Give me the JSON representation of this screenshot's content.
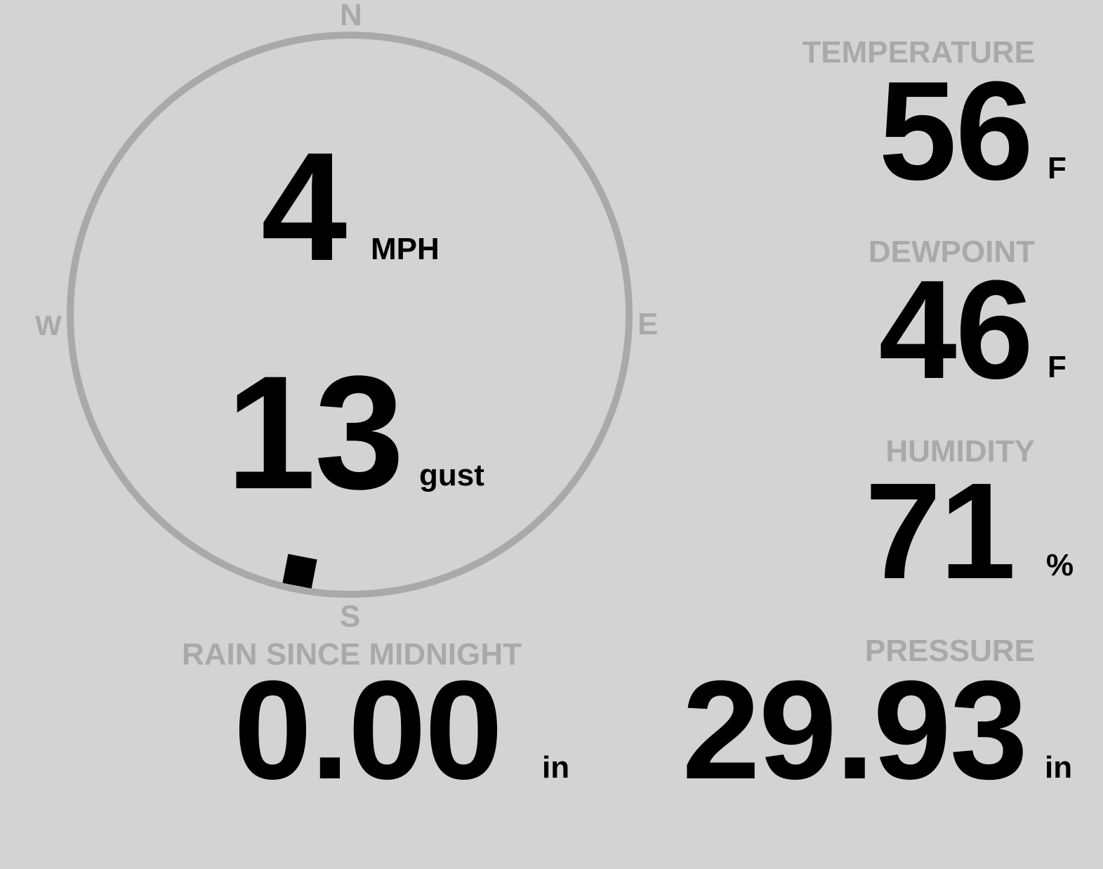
{
  "wind": {
    "speed": "4",
    "speed_unit": "MPH",
    "gust": "13",
    "gust_unit": "gust",
    "direction_deg": 191,
    "compass": {
      "n": "N",
      "e": "E",
      "s": "S",
      "w": "W"
    }
  },
  "temperature": {
    "label": "TEMPERATURE",
    "value": "56",
    "unit": "F"
  },
  "dewpoint": {
    "label": "DEWPOINT",
    "value": "46",
    "unit": "F"
  },
  "humidity": {
    "label": "HUMIDITY",
    "value": "71",
    "unit": "%"
  },
  "rain": {
    "label": "RAIN SINCE MIDNIGHT",
    "value": "0.00",
    "unit": "in"
  },
  "pressure": {
    "label": "PRESSURE",
    "value": "29.93",
    "unit": "in"
  },
  "colors": {
    "background": "#d3d3d3",
    "label": "#a9a9a9",
    "value": "#000000"
  }
}
